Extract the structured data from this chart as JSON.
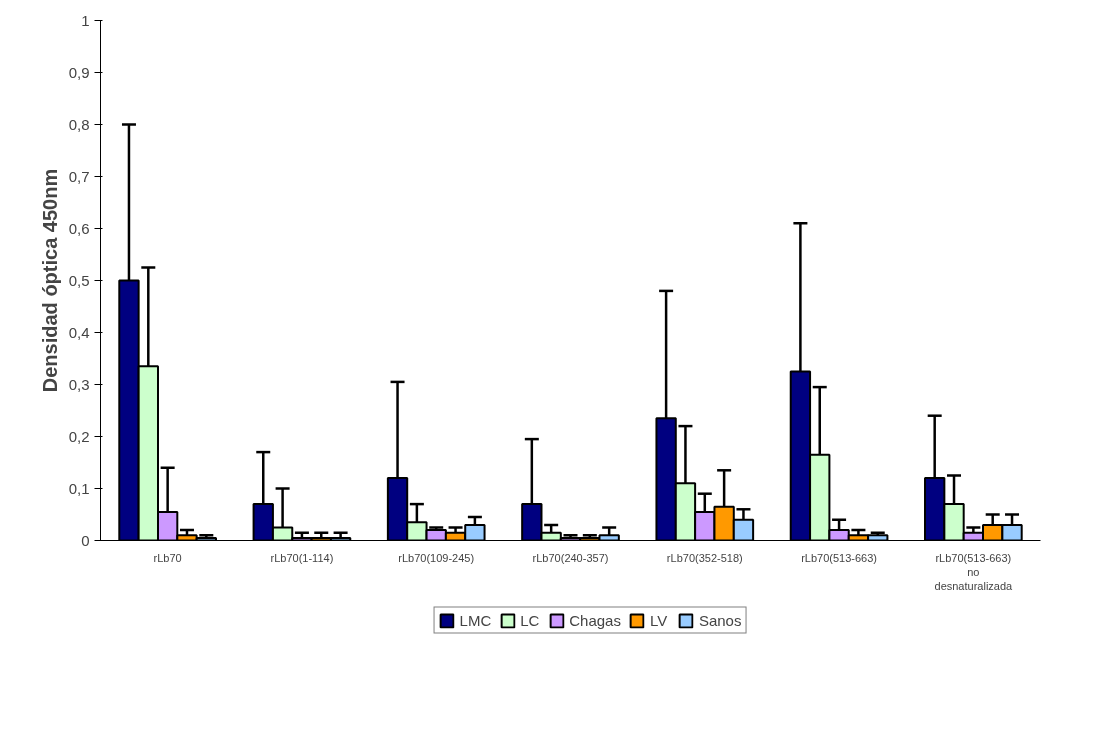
{
  "chart_data": {
    "type": "bar",
    "ylabel": "Densidad óptica 450nm",
    "categories": [
      "rLb70",
      "rLb70(1-114)",
      "rLb70(109-245)",
      "rLb70(240-357)",
      "rLb70(352-518)",
      "rLb70(513-663)",
      "rLb70(513-663)\nno\ndesnaturalizada"
    ],
    "series": [
      {
        "name": "LMC",
        "color": "#000080",
        "values": [
          0.5,
          0.07,
          0.12,
          0.07,
          0.235,
          0.325,
          0.12
        ],
        "errors": [
          0.3,
          0.1,
          0.185,
          0.125,
          0.245,
          0.285,
          0.12
        ]
      },
      {
        "name": "LC",
        "color": "#ccffcc",
        "values": [
          0.335,
          0.025,
          0.035,
          0.015,
          0.11,
          0.165,
          0.07
        ],
        "errors": [
          0.19,
          0.075,
          0.035,
          0.015,
          0.11,
          0.13,
          0.055
        ]
      },
      {
        "name": "Chagas",
        "color": "#cc99ff",
        "values": [
          0.055,
          0.005,
          0.02,
          0.005,
          0.055,
          0.02,
          0.015
        ],
        "errors": [
          0.085,
          0.01,
          0.005,
          0.005,
          0.035,
          0.02,
          0.01
        ]
      },
      {
        "name": "LV",
        "color": "#ff9900",
        "values": [
          0.01,
          0.005,
          0.015,
          0.005,
          0.065,
          0.01,
          0.03
        ],
        "errors": [
          0.01,
          0.01,
          0.01,
          0.005,
          0.07,
          0.01,
          0.02
        ]
      },
      {
        "name": "Sanos",
        "color": "#99ccff",
        "values": [
          0.005,
          0.005,
          0.03,
          0.01,
          0.04,
          0.01,
          0.03
        ],
        "errors": [
          0.005,
          0.01,
          0.015,
          0.015,
          0.02,
          0.005,
          0.02
        ]
      }
    ],
    "ylim": [
      0,
      1
    ],
    "yticks": [
      0,
      {
        "value": 0.1,
        "label": "0,1"
      },
      {
        "value": 0.2,
        "label": "0,2"
      },
      {
        "value": 0.3,
        "label": "0,3"
      },
      {
        "value": 0.4,
        "label": "0,4"
      },
      {
        "value": 0.5,
        "label": "0,5"
      },
      {
        "value": 0.6,
        "label": "0,6"
      },
      {
        "value": 0.7,
        "label": "0,7"
      },
      {
        "value": 0.8,
        "label": "0,8"
      },
      {
        "value": 0.9,
        "label": "0,9"
      },
      1
    ],
    "grid": false,
    "legend": "bottom"
  }
}
